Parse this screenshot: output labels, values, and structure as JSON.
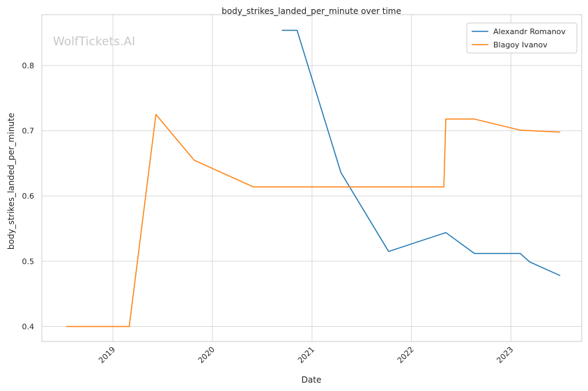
{
  "chart_data": {
    "type": "line",
    "title": "body_strikes_landed_per_minute over time",
    "xlabel": "Date",
    "ylabel": "body_strikes_landed_per_minute",
    "watermark": "WolfTickets.AI",
    "x_ticks": [
      "2019",
      "2020",
      "2021",
      "2022",
      "2023"
    ],
    "y_ticks": [
      "0.4",
      "0.5",
      "0.6",
      "0.7",
      "0.8"
    ],
    "xlim": [
      "2018-04-15",
      "2023-09-18"
    ],
    "ylim": [
      0.377,
      0.878
    ],
    "grid": true,
    "legend_position": "top-right",
    "series": [
      {
        "name": "Alexandr Romanov",
        "color": "#1f77b4",
        "points": [
          {
            "x": "2020-09-12",
            "y": 0.854
          },
          {
            "x": "2020-11-07",
            "y": 0.854
          },
          {
            "x": "2021-04-17",
            "y": 0.636
          },
          {
            "x": "2021-10-09",
            "y": 0.515
          },
          {
            "x": "2022-05-07",
            "y": 0.544
          },
          {
            "x": "2022-08-20",
            "y": 0.512
          },
          {
            "x": "2023-02-04",
            "y": 0.512
          },
          {
            "x": "2023-03-11",
            "y": 0.499
          },
          {
            "x": "2023-07-01",
            "y": 0.478
          }
        ]
      },
      {
        "name": "Blagoy Ivanov",
        "color": "#ff7f0e",
        "points": [
          {
            "x": "2018-07-14",
            "y": 0.4
          },
          {
            "x": "2019-03-02",
            "y": 0.4
          },
          {
            "x": "2019-06-08",
            "y": 0.725
          },
          {
            "x": "2019-10-26",
            "y": 0.655
          },
          {
            "x": "2020-05-30",
            "y": 0.614
          },
          {
            "x": "2022-04-30",
            "y": 0.614
          },
          {
            "x": "2022-05-07",
            "y": 0.718
          },
          {
            "x": "2022-08-20",
            "y": 0.718
          },
          {
            "x": "2023-02-04",
            "y": 0.701
          },
          {
            "x": "2023-07-01",
            "y": 0.698
          }
        ]
      }
    ]
  }
}
